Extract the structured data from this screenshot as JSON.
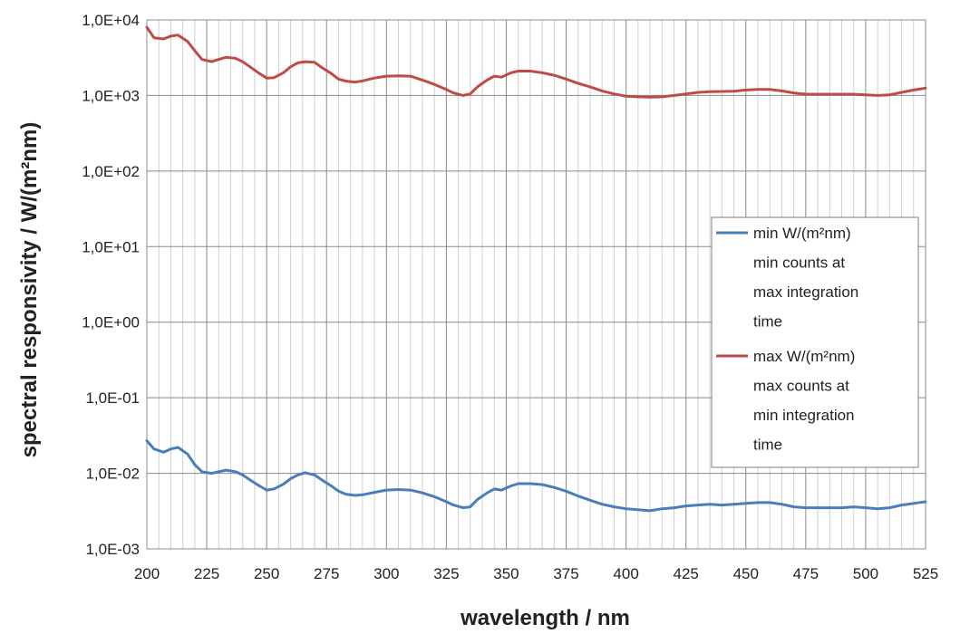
{
  "chart_data": {
    "type": "line",
    "title": "",
    "xlabel": "wavelength / nm",
    "ylabel": "spectral responsivity / W/(m²nm)",
    "xlim": [
      200,
      525
    ],
    "ylim": [
      0.001,
      10000
    ],
    "y_scale": "log",
    "grid": true,
    "x_ticks": [
      200,
      225,
      250,
      275,
      300,
      325,
      350,
      375,
      400,
      425,
      450,
      475,
      500,
      525
    ],
    "x_tick_labels": [
      "200",
      "225",
      "250",
      "275",
      "300",
      "325",
      "350",
      "375",
      "400",
      "425",
      "450",
      "475",
      "500",
      "525"
    ],
    "y_ticks": [
      0.001,
      0.01,
      0.1,
      1,
      10,
      100,
      1000,
      10000
    ],
    "y_tick_labels": [
      "1,0E-03",
      "1,0E-02",
      "1,0E-01",
      "1,0E+00",
      "1,0E+01",
      "1,0E+02",
      "1,0E+03",
      "1,0E+04"
    ],
    "legend_position": "right",
    "series": [
      {
        "name": "min W/(m²nm)",
        "legend_lines": [
          "min W/(m²nm)",
          "min counts at",
          "max integration",
          "time"
        ],
        "color": "#4a7ebb",
        "x": [
          200,
          203,
          207,
          210,
          213,
          217,
          220,
          223,
          227,
          230,
          233,
          237,
          240,
          243,
          247,
          250,
          253,
          257,
          260,
          263,
          266,
          270,
          273,
          277,
          280,
          283,
          287,
          290,
          295,
          300,
          305,
          310,
          315,
          320,
          325,
          328,
          332,
          335,
          338,
          342,
          345,
          348,
          352,
          355,
          360,
          365,
          370,
          375,
          380,
          385,
          390,
          395,
          400,
          405,
          410,
          415,
          420,
          425,
          430,
          435,
          440,
          445,
          450,
          455,
          460,
          465,
          470,
          475,
          480,
          485,
          490,
          495,
          500,
          505,
          510,
          515,
          520,
          525
        ],
        "values": [
          0.027,
          0.021,
          0.019,
          0.021,
          0.022,
          0.018,
          0.013,
          0.0105,
          0.01,
          0.0105,
          0.011,
          0.0105,
          0.0095,
          0.0082,
          0.0068,
          0.006,
          0.0062,
          0.0072,
          0.0085,
          0.0095,
          0.0102,
          0.0095,
          0.0082,
          0.0068,
          0.0058,
          0.0053,
          0.0051,
          0.0052,
          0.0056,
          0.006,
          0.0061,
          0.006,
          0.0055,
          0.0049,
          0.0042,
          0.0038,
          0.0035,
          0.0036,
          0.0045,
          0.0055,
          0.0062,
          0.006,
          0.0068,
          0.0073,
          0.0073,
          0.0071,
          0.0065,
          0.0058,
          0.005,
          0.0044,
          0.0039,
          0.0036,
          0.0034,
          0.0033,
          0.0032,
          0.0034,
          0.0035,
          0.0037,
          0.0038,
          0.0039,
          0.0038,
          0.0039,
          0.004,
          0.0041,
          0.0041,
          0.0039,
          0.0036,
          0.0035,
          0.0035,
          0.0035,
          0.0035,
          0.0036,
          0.0035,
          0.0034,
          0.0035,
          0.0038,
          0.004,
          0.0042
        ]
      },
      {
        "name": "max W/(m²nm)",
        "legend_lines": [
          "max W/(m²nm)",
          "max counts at",
          "min integration",
          "time"
        ],
        "color": "#be4b48",
        "x": [
          200,
          203,
          207,
          210,
          213,
          217,
          220,
          223,
          227,
          230,
          233,
          237,
          240,
          243,
          247,
          250,
          253,
          257,
          260,
          263,
          266,
          270,
          273,
          277,
          280,
          283,
          287,
          290,
          295,
          300,
          305,
          310,
          315,
          320,
          325,
          328,
          332,
          335,
          338,
          342,
          345,
          348,
          352,
          355,
          360,
          365,
          370,
          375,
          380,
          385,
          390,
          395,
          400,
          405,
          410,
          415,
          420,
          425,
          430,
          435,
          440,
          445,
          450,
          455,
          460,
          465,
          470,
          475,
          480,
          485,
          490,
          495,
          500,
          505,
          510,
          515,
          520,
          525
        ],
        "values": [
          8000,
          5800,
          5600,
          6100,
          6300,
          5200,
          3900,
          3000,
          2800,
          3000,
          3200,
          3100,
          2800,
          2400,
          1950,
          1700,
          1720,
          2000,
          2400,
          2700,
          2800,
          2750,
          2350,
          1950,
          1650,
          1550,
          1500,
          1560,
          1700,
          1800,
          1820,
          1800,
          1600,
          1400,
          1200,
          1080,
          1000,
          1050,
          1300,
          1600,
          1800,
          1750,
          2000,
          2100,
          2100,
          2000,
          1850,
          1650,
          1450,
          1300,
          1150,
          1050,
          980,
          960,
          950,
          960,
          1000,
          1050,
          1100,
          1120,
          1130,
          1140,
          1180,
          1200,
          1200,
          1150,
          1080,
          1040,
          1040,
          1040,
          1040,
          1040,
          1020,
          1000,
          1020,
          1100,
          1180,
          1250
        ]
      }
    ]
  }
}
